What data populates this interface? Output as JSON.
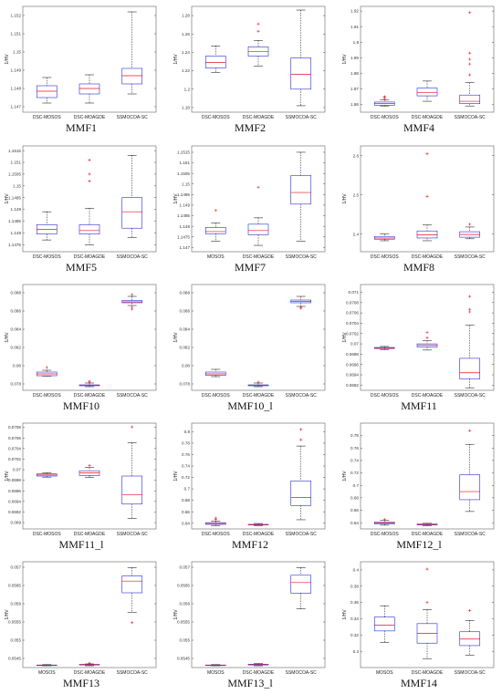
{
  "chart_data": [
    {
      "type": "box",
      "caption": "MMF1",
      "ylabel": "1/HV",
      "categories": [
        "DSC-MOSOS",
        "DSC-MOAGDE",
        "SSMOCOA-SC"
      ],
      "yticks": [
        1.147,
        1.148,
        1.149,
        1.15,
        1.151,
        1.152
      ],
      "ylim": [
        1.1467,
        1.1525
      ],
      "boxes": [
        {
          "min": 1.1472,
          "q1": 1.1475,
          "median": 1.14785,
          "q3": 1.14815,
          "max": 1.1486,
          "outliers": []
        },
        {
          "min": 1.1472,
          "q1": 1.1477,
          "median": 1.148,
          "q3": 1.14825,
          "max": 1.14875,
          "outliers": []
        },
        {
          "min": 1.1477,
          "q1": 1.14825,
          "median": 1.1487,
          "q3": 1.1491,
          "max": 1.1522,
          "outliers": []
        }
      ]
    },
    {
      "type": "box",
      "caption": "MMF2",
      "ylabel": "1/HV",
      "categories": [
        "DSC-MOSOS",
        "DSC-MOAGDE",
        "SSMOCOA-SC"
      ],
      "yticks": [
        1.18,
        1.2,
        1.22,
        1.24,
        1.26,
        1.28
      ],
      "ylim": [
        1.175,
        1.29
      ],
      "boxes": [
        {
          "min": 1.218,
          "q1": 1.223,
          "median": 1.229,
          "q3": 1.236,
          "max": 1.247,
          "outliers": []
        },
        {
          "min": 1.225,
          "q1": 1.236,
          "median": 1.241,
          "q3": 1.246,
          "max": 1.253,
          "outliers": [
            1.263,
            1.271
          ]
        },
        {
          "min": 1.182,
          "q1": 1.2,
          "median": 1.216,
          "q3": 1.234,
          "max": 1.286,
          "outliers": []
        }
      ]
    },
    {
      "type": "box",
      "caption": "MMF4",
      "ylabel": "1/HV",
      "categories": [
        "DSC-MOSOS",
        "DSC-MOAGDE",
        "SSMOCOA-SC"
      ],
      "yticks": [
        1.86,
        1.87,
        1.88,
        1.89,
        1.9,
        1.91,
        1.92
      ],
      "ylim": [
        1.855,
        1.923
      ],
      "boxes": [
        {
          "min": 1.859,
          "q1": 1.8595,
          "median": 1.8605,
          "q3": 1.8615,
          "max": 1.863,
          "outliers": [
            1.8635,
            1.8645,
            1.865
          ]
        },
        {
          "min": 1.862,
          "q1": 1.8655,
          "median": 1.8675,
          "q3": 1.8705,
          "max": 1.875,
          "outliers": []
        },
        {
          "min": 1.859,
          "q1": 1.8605,
          "median": 1.862,
          "q3": 1.866,
          "max": 1.874,
          "outliers": [
            1.879,
            1.886,
            1.889,
            1.893,
            1.919
          ]
        }
      ]
    },
    {
      "type": "box",
      "caption": "MMF5",
      "ylabel": "1/HV",
      "categories": [
        "DSC-MOSOS",
        "DSC-MOAGDE",
        "SSMOCOA-SC"
      ],
      "yticks": [
        1.1475,
        1.148,
        1.1485,
        1.149,
        1.1495,
        1.15,
        1.1505,
        1.151,
        1.1515
      ],
      "ylim": [
        1.1472,
        1.1517
      ],
      "boxes": [
        {
          "min": 1.1477,
          "q1": 1.14795,
          "median": 1.14815,
          "q3": 1.14835,
          "max": 1.1489,
          "outliers": []
        },
        {
          "min": 1.1475,
          "q1": 1.14795,
          "median": 1.1481,
          "q3": 1.14835,
          "max": 1.14905,
          "outliers": [
            1.1502,
            1.1505,
            1.1511
          ]
        },
        {
          "min": 1.1478,
          "q1": 1.1482,
          "median": 1.1489,
          "q3": 1.1495,
          "max": 1.1513,
          "outliers": []
        }
      ]
    },
    {
      "type": "box",
      "caption": "MMF7",
      "ylabel": "1/HV",
      "categories": [
        "MOSOS",
        "DSC-MOAGDE",
        "SSMOCOA-SC"
      ],
      "yticks": [
        1.147,
        1.1475,
        1.148,
        1.1485,
        1.149,
        1.1495,
        1.15,
        1.1505,
        1.151,
        1.1515
      ],
      "ylim": [
        1.1468,
        1.1518
      ],
      "boxes": [
        {
          "min": 1.1473,
          "q1": 1.14765,
          "median": 1.14775,
          "q3": 1.14795,
          "max": 1.14815,
          "outliers": [
            1.14875
          ]
        },
        {
          "min": 1.1471,
          "q1": 1.1476,
          "median": 1.1478,
          "q3": 1.1481,
          "max": 1.1484,
          "outliers": [
            1.14985
          ]
        },
        {
          "min": 1.1473,
          "q1": 1.14905,
          "median": 1.1496,
          "q3": 1.1504,
          "max": 1.1515,
          "outliers": []
        }
      ]
    },
    {
      "type": "box",
      "caption": "MMF8",
      "ylabel": "1/HV",
      "categories": [
        "DSC-MOSOS",
        "DSC-MOAGDE",
        "SSMOCOA-SC"
      ],
      "yticks": [
        2.4,
        2.5,
        2.6
      ],
      "ylim": [
        2.355,
        2.625
      ],
      "boxes": [
        {
          "min": 2.383,
          "q1": 2.387,
          "median": 2.39,
          "q3": 2.394,
          "max": 2.4,
          "outliers": []
        },
        {
          "min": 2.383,
          "q1": 2.39,
          "median": 2.398,
          "q3": 2.408,
          "max": 2.423,
          "outliers": [
            2.496,
            2.605
          ]
        },
        {
          "min": 2.388,
          "q1": 2.392,
          "median": 2.399,
          "q3": 2.406,
          "max": 2.418,
          "outliers": [
            2.425
          ]
        }
      ]
    },
    {
      "type": "box",
      "caption": "MMF10",
      "ylabel": "1/HV",
      "categories": [
        "DSC-MOSOS",
        "DSC-MOAGDE",
        "SSMOCOA-SC"
      ],
      "yticks": [
        0.078,
        0.08,
        0.082,
        0.084,
        0.086,
        0.088
      ],
      "ylim": [
        0.0773,
        0.0889
      ],
      "boxes": [
        {
          "min": 0.07885,
          "q1": 0.0789,
          "median": 0.0791,
          "q3": 0.0793,
          "max": 0.0795,
          "outliers": [
            0.0798
          ]
        },
        {
          "min": 0.0777,
          "q1": 0.0778,
          "median": 0.07785,
          "q3": 0.0779,
          "max": 0.0781,
          "outliers": [
            0.0782,
            0.0783
          ]
        },
        {
          "min": 0.0866,
          "q1": 0.0869,
          "median": 0.087,
          "q3": 0.08715,
          "max": 0.0876,
          "outliers": [
            0.0862,
            0.0864,
            0.0878
          ]
        }
      ]
    },
    {
      "type": "box",
      "caption": "MMF10_l",
      "ylabel": "1/HV",
      "categories": [
        "DSC-MOSOS",
        "DSC-MOAGDE",
        "SSMOCOA-SC"
      ],
      "yticks": [
        0.078,
        0.08,
        0.082,
        0.084,
        0.086,
        0.088
      ],
      "ylim": [
        0.0773,
        0.0889
      ],
      "boxes": [
        {
          "min": 0.0788,
          "q1": 0.07895,
          "median": 0.0791,
          "q3": 0.0793,
          "max": 0.0796,
          "outliers": []
        },
        {
          "min": 0.0777,
          "q1": 0.0778,
          "median": 0.07785,
          "q3": 0.0779,
          "max": 0.0781,
          "outliers": [
            0.0782
          ]
        },
        {
          "min": 0.0865,
          "q1": 0.0869,
          "median": 0.08705,
          "q3": 0.0872,
          "max": 0.0876,
          "outliers": [
            0.0863,
            0.0864
          ]
        }
      ]
    },
    {
      "type": "box",
      "caption": "MMF11",
      "ylabel": "1/HV",
      "categories": [
        "DSC-MOSOS",
        "DSC-MOAGDE",
        "SSMOCOA-SC"
      ],
      "yticks": [
        0.0692,
        0.0694,
        0.0696,
        0.0698,
        0.07,
        0.0702,
        0.0704,
        0.0706,
        0.0708,
        0.071
      ],
      "ylim": [
        0.0691,
        0.07115
      ],
      "boxes": [
        {
          "min": 0.06989,
          "q1": 0.06991,
          "median": 0.06992,
          "q3": 0.06993,
          "max": 0.06995,
          "outliers": []
        },
        {
          "min": 0.06988,
          "q1": 0.06994,
          "median": 0.06997,
          "q3": 0.07,
          "max": 0.07006,
          "outliers": [
            0.07012,
            0.07022
          ]
        },
        {
          "min": 0.06915,
          "q1": 0.06932,
          "median": 0.06944,
          "q3": 0.06972,
          "max": 0.07036,
          "outliers": [
            0.07062,
            0.07067,
            0.07092
          ]
        }
      ]
    },
    {
      "type": "box",
      "caption": "MMF11_l",
      "ylabel": "1/HV",
      "categories": [
        "DSC-MOSOS",
        "DSC-MOAGDE",
        "SSMOCOA-SC"
      ],
      "yticks": [
        0.069,
        0.0692,
        0.0694,
        0.0696,
        0.0698,
        0.07,
        0.0702,
        0.0704,
        0.0706,
        0.0708
      ],
      "ylim": [
        0.06888,
        0.07088
      ],
      "boxes": [
        {
          "min": 0.06986,
          "q1": 0.06988,
          "median": 0.0699,
          "q3": 0.06992,
          "max": 0.06994,
          "outliers": []
        },
        {
          "min": 0.06985,
          "q1": 0.06989,
          "median": 0.06994,
          "q3": 0.06998,
          "max": 0.07004,
          "outliers": [
            0.07008
          ]
        },
        {
          "min": 0.06908,
          "q1": 0.06935,
          "median": 0.06953,
          "q3": 0.06988,
          "max": 0.07051,
          "outliers": [
            0.07081
          ]
        }
      ]
    },
    {
      "type": "box",
      "caption": "MMF12",
      "ylabel": "1/HV",
      "categories": [
        "DSC-MOSOS",
        "DSC-MOAGDE",
        "SSMOCOA-SC"
      ],
      "yticks": [
        0.64,
        0.66,
        0.68,
        0.7,
        0.72,
        0.74,
        0.76,
        0.78,
        0.8
      ],
      "ylim": [
        0.63,
        0.815
      ],
      "boxes": [
        {
          "min": 0.636,
          "q1": 0.638,
          "median": 0.6395,
          "q3": 0.641,
          "max": 0.644,
          "outliers": [
            0.647,
            0.649
          ]
        },
        {
          "min": 0.636,
          "q1": 0.637,
          "median": 0.6375,
          "q3": 0.638,
          "max": 0.6395,
          "outliers": []
        },
        {
          "min": 0.646,
          "q1": 0.671,
          "median": 0.685,
          "q3": 0.714,
          "max": 0.775,
          "outliers": [
            0.786,
            0.804
          ]
        }
      ]
    },
    {
      "type": "box",
      "caption": "MMF12_l",
      "ylabel": "1/HV",
      "categories": [
        "DSC-MOSOS",
        "DSC-MOAGDE",
        "SSMOCOA-SC"
      ],
      "yticks": [
        0.64,
        0.66,
        0.68,
        0.7,
        0.72,
        0.74,
        0.76,
        0.78
      ],
      "ylim": [
        0.63,
        0.8
      ],
      "boxes": [
        {
          "min": 0.636,
          "q1": 0.638,
          "median": 0.6395,
          "q3": 0.641,
          "max": 0.644,
          "outliers": [
            0.645
          ]
        },
        {
          "min": 0.635,
          "q1": 0.6365,
          "median": 0.637,
          "q3": 0.638,
          "max": 0.639,
          "outliers": []
        },
        {
          "min": 0.658,
          "q1": 0.677,
          "median": 0.69,
          "q3": 0.717,
          "max": 0.766,
          "outliers": [
            0.788
          ]
        }
      ]
    },
    {
      "type": "box",
      "caption": "MMF13",
      "ylabel": "1/HV",
      "categories": [
        "MOSOS",
        "DSC-MOAGDE",
        "SSMOCOA-SC"
      ],
      "yticks": [
        0.0545,
        0.055,
        0.0555,
        0.056,
        0.0565,
        0.057
      ],
      "ylim": [
        0.05425,
        0.05715
      ],
      "boxes": [
        {
          "min": 0.0543,
          "q1": 0.05431,
          "median": 0.054315,
          "q3": 0.05432,
          "max": 0.05433,
          "outliers": []
        },
        {
          "min": 0.0543,
          "q1": 0.05432,
          "median": 0.054328,
          "q3": 0.054338,
          "max": 0.05435,
          "outliers": [
            0.05437
          ]
        },
        {
          "min": 0.05576,
          "q1": 0.0563,
          "median": 0.05662,
          "q3": 0.05676,
          "max": 0.05699,
          "outliers": [
            0.05548
          ]
        }
      ]
    },
    {
      "type": "box",
      "caption": "MMF13_l",
      "ylabel": "1/HV",
      "categories": [
        "MOSOS",
        "DSC-MOAGDE",
        "SSMOCOA-SC"
      ],
      "yticks": [
        0.0545,
        0.055,
        0.0555,
        0.056,
        0.0565,
        0.057
      ],
      "ylim": [
        0.05425,
        0.05715
      ],
      "boxes": [
        {
          "min": 0.0543,
          "q1": 0.05431,
          "median": 0.054315,
          "q3": 0.05432,
          "max": 0.05433,
          "outliers": []
        },
        {
          "min": 0.0543,
          "q1": 0.05432,
          "median": 0.05433,
          "q3": 0.05434,
          "max": 0.05436,
          "outliers": []
        },
        {
          "min": 0.05586,
          "q1": 0.05629,
          "median": 0.05658,
          "q3": 0.05678,
          "max": 0.05699,
          "outliers": []
        }
      ]
    },
    {
      "type": "box",
      "caption": "MMF14",
      "ylabel": "1/HV",
      "categories": [
        "MOSOS",
        "DSC-MOAGDE",
        "SSMOCOA-SC"
      ],
      "yticks": [
        0.3,
        0.32,
        0.34,
        0.36,
        0.38,
        0.4
      ],
      "ylim": [
        0.28,
        0.41
      ],
      "boxes": [
        {
          "min": 0.311,
          "q1": 0.325,
          "median": 0.332,
          "q3": 0.342,
          "max": 0.356,
          "outliers": []
        },
        {
          "min": 0.291,
          "q1": 0.31,
          "median": 0.322,
          "q3": 0.334,
          "max": 0.351,
          "outliers": [
            0.36,
            0.401
          ]
        },
        {
          "min": 0.295,
          "q1": 0.307,
          "median": 0.315,
          "q3": 0.324,
          "max": 0.338,
          "outliers": [
            0.35
          ]
        }
      ]
    }
  ]
}
